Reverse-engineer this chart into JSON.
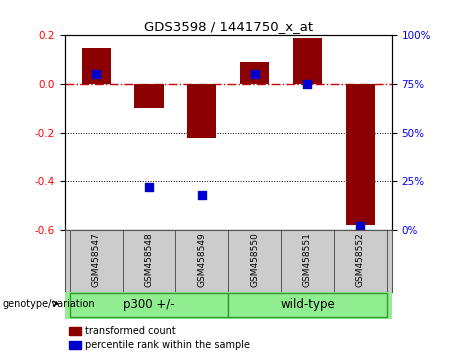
{
  "title": "GDS3598 / 1441750_x_at",
  "samples": [
    "GSM458547",
    "GSM458548",
    "GSM458549",
    "GSM458550",
    "GSM458551",
    "GSM458552"
  ],
  "red_bars": [
    0.15,
    -0.1,
    -0.22,
    0.09,
    0.19,
    -0.58
  ],
  "blue_squares_pct": [
    80,
    22,
    18,
    80,
    75,
    2
  ],
  "group_p300": {
    "label": "p300 +/-",
    "samples": [
      0,
      1,
      2
    ]
  },
  "group_wt": {
    "label": "wild-type",
    "samples": [
      3,
      4,
      5
    ]
  },
  "ylim": [
    -0.6,
    0.2
  ],
  "yticks_left": [
    0.2,
    0.0,
    -0.2,
    -0.4,
    -0.6
  ],
  "yticks_right_pct": [
    100,
    75,
    50,
    25,
    0
  ],
  "bar_color": "#8B0000",
  "square_color": "#0000CD",
  "zero_line_color": "#CC0000",
  "dotted_line_color": "#000000",
  "plot_bg_color": "#FFFFFF",
  "sample_box_color": "#CCCCCC",
  "group_box_color": "#90EE90",
  "group_box_border": "#339933",
  "legend_red": "transformed count",
  "legend_blue": "percentile rank within the sample",
  "bar_width": 0.55,
  "square_size": 30,
  "geno_label": "genotype/variation"
}
